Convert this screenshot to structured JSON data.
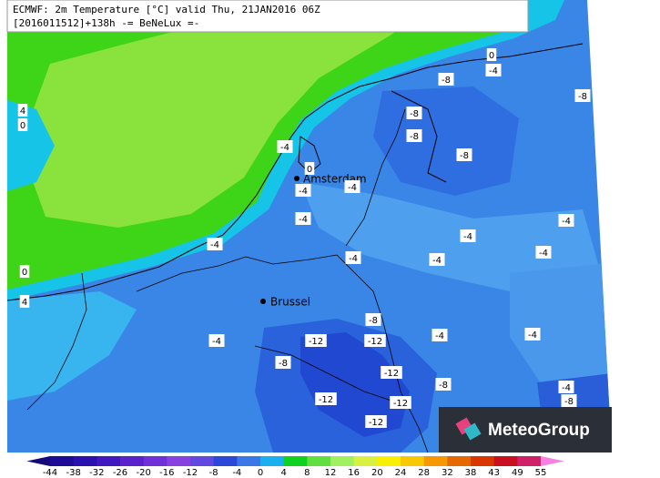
{
  "header": {
    "line1": "ECMWF: 2m Temperature [°C] valid Thu, 21JAN2016 06Z",
    "line2": "[2016011512]+138h -= BeNeLux =-"
  },
  "cities": [
    "Amsterdam",
    "Brussel"
  ],
  "contour_labels": [
    0,
    -4,
    -8,
    -8,
    -8,
    -8,
    -8,
    -4,
    0,
    -4,
    -4,
    4,
    0,
    -4,
    -4,
    -4,
    -4,
    -4,
    -4,
    -4,
    0,
    4,
    -8,
    -4,
    -12,
    -12,
    -4,
    -4,
    -8,
    -12,
    -8,
    -4,
    -12,
    -12,
    -8,
    -12
  ],
  "logo": "MeteoGroup",
  "colorbar": {
    "labels": [
      -44,
      -38,
      -32,
      -26,
      -20,
      -16,
      -12,
      -8,
      -4,
      0,
      4,
      8,
      12,
      16,
      20,
      24,
      28,
      32,
      38,
      43,
      49,
      55
    ],
    "colors": [
      "#14087a",
      "#1c0c96",
      "#2a10ae",
      "#4018c0",
      "#5a22cc",
      "#7030d8",
      "#8840e0",
      "#6048e0",
      "#2c48d8",
      "#3a78e8",
      "#1ab0f0",
      "#10d020",
      "#60e040",
      "#a0f060",
      "#d8f040",
      "#f8f000",
      "#f8c800",
      "#f89800",
      "#e86800",
      "#d83800",
      "#c81020",
      "#d02068",
      "#e850b0",
      "#f880e0"
    ]
  }
}
